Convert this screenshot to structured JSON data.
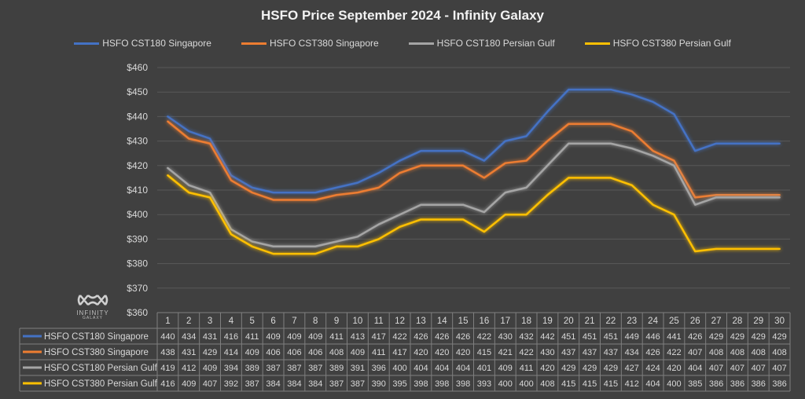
{
  "chart_data": {
    "type": "line",
    "title": "HSFO Price September 2024 - Infinity Galaxy",
    "categories": [
      1,
      2,
      3,
      4,
      5,
      6,
      7,
      8,
      9,
      10,
      11,
      12,
      13,
      14,
      15,
      16,
      17,
      18,
      19,
      20,
      21,
      22,
      23,
      24,
      25,
      26,
      27,
      28,
      29,
      30
    ],
    "ylim": [
      360,
      460
    ],
    "yticks": [
      "$360",
      "$370",
      "$380",
      "$390",
      "$400",
      "$410",
      "$420",
      "$430",
      "$440",
      "$450",
      "$460"
    ],
    "grid": true,
    "legend_placement": "top",
    "data_table": true,
    "series": [
      {
        "name": "HSFO CST180 Singapore",
        "color": "#4472c4",
        "values": [
          440,
          434,
          431,
          416,
          411,
          409,
          409,
          409,
          411,
          413,
          417,
          422,
          426,
          426,
          426,
          422,
          430,
          432,
          442,
          451,
          451,
          451,
          449,
          446,
          441,
          426,
          429,
          429,
          429,
          429
        ]
      },
      {
        "name": "HSFO CST380 Singapore",
        "color": "#ed7d31",
        "values": [
          438,
          431,
          429,
          414,
          409,
          406,
          406,
          406,
          408,
          409,
          411,
          417,
          420,
          420,
          420,
          415,
          421,
          422,
          430,
          437,
          437,
          437,
          434,
          426,
          422,
          407,
          408,
          408,
          408,
          408
        ]
      },
      {
        "name": "HSFO CST180 Persian Gulf",
        "color": "#a5a5a5",
        "values": [
          419,
          412,
          409,
          394,
          389,
          387,
          387,
          387,
          389,
          391,
          396,
          400,
          404,
          404,
          404,
          401,
          409,
          411,
          420,
          429,
          429,
          429,
          427,
          424,
          420,
          404,
          407,
          407,
          407,
          407
        ]
      },
      {
        "name": "HSFO CST380 Persian Gulf",
        "color": "#ffc000",
        "values": [
          416,
          409,
          407,
          392,
          387,
          384,
          384,
          384,
          387,
          387,
          390,
          395,
          398,
          398,
          398,
          393,
          400,
          400,
          408,
          415,
          415,
          415,
          412,
          404,
          400,
          385,
          386,
          386,
          386,
          386
        ]
      }
    ]
  },
  "logo": {
    "line1": "INFINITY",
    "line2": "GALAXY"
  }
}
